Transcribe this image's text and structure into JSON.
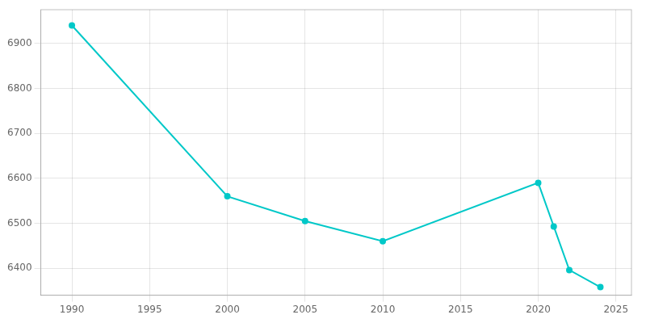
{
  "chart_data": {
    "type": "line",
    "x": [
      1990,
      2000,
      2005,
      2010,
      2020,
      2021,
      2022,
      2024
    ],
    "values": [
      6940,
      6560,
      6505,
      6460,
      6590,
      6493,
      6396,
      6358
    ],
    "color": "#00C8C8",
    "marker": "circle",
    "line_style": "solid",
    "xlim": [
      1988,
      2026
    ],
    "xticks": [
      1990,
      1995,
      2000,
      2005,
      2010,
      2015,
      2020,
      2025
    ],
    "ylim": [
      6340,
      6975
    ],
    "yticks": [
      6400,
      6500,
      6600,
      6700,
      6800,
      6900
    ],
    "grid": true
  }
}
